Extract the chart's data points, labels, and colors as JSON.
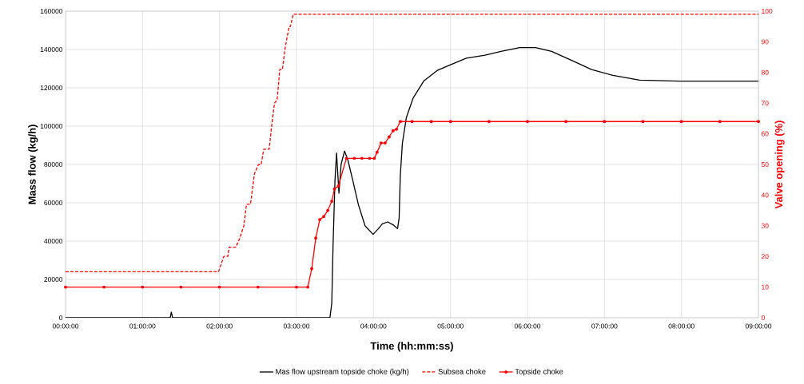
{
  "chart_data": {
    "type": "line",
    "xlabel": "Time (hh:mm:ss)",
    "ylabel": "Mass flow (kg/h)",
    "y2label": "Valve opening (%)",
    "xlim": [
      0,
      9
    ],
    "xticks": [
      {
        "value": 0,
        "label": "00:00:00"
      },
      {
        "value": 1,
        "label": "01:00:00"
      },
      {
        "value": 2,
        "label": "02:00:00"
      },
      {
        "value": 3,
        "label": "03:00:00"
      },
      {
        "value": 4,
        "label": "04:00:00"
      },
      {
        "value": 5,
        "label": "05:00:00"
      },
      {
        "value": 6,
        "label": "06:00:00"
      },
      {
        "value": 7,
        "label": "07:00:00"
      },
      {
        "value": 8,
        "label": "08:00:00"
      },
      {
        "value": 9,
        "label": "09:00:00"
      }
    ],
    "ylim": [
      0,
      160000
    ],
    "yticks": [
      0,
      20000,
      40000,
      60000,
      80000,
      100000,
      120000,
      140000,
      160000
    ],
    "y2lim": [
      0,
      100
    ],
    "y2ticks": [
      0,
      10,
      20,
      30,
      40,
      50,
      60,
      70,
      80,
      90,
      100
    ],
    "grid": true,
    "legend": "bottom",
    "series": [
      {
        "name": "Mas flow upstream topside choke (kg/h)",
        "color": "#000000",
        "line_style": "solid",
        "marker": "none",
        "x": [
          0,
          1.36,
          1.374,
          1.39,
          3.434,
          3.458,
          3.475,
          3.499,
          3.52,
          3.538,
          3.551,
          3.579,
          3.624,
          3.666,
          3.735,
          3.804,
          3.89,
          3.995,
          4.064,
          4.115,
          4.185,
          4.254,
          4.313,
          4.333,
          4.348,
          4.375,
          4.427,
          4.513,
          4.652,
          4.825,
          5.0,
          5.206,
          5.448,
          5.656,
          5.898,
          6.106,
          6.314,
          6.591,
          6.833,
          7.11,
          7.456,
          7.975,
          9
        ],
        "values": [
          0,
          0,
          3000,
          0,
          0,
          7500,
          38000,
          71000,
          86000,
          74000,
          65000,
          80000,
          87000,
          82500,
          71000,
          59000,
          48000,
          43500,
          46500,
          49000,
          50000,
          48500,
          46500,
          52000,
          74000,
          91000,
          104500,
          114500,
          123500,
          129000,
          132000,
          135500,
          137000,
          139000,
          141000,
          141000,
          139000,
          134000,
          129500,
          126500,
          124000,
          123500,
          123500
        ]
      },
      {
        "name": "Subsea choke",
        "color": "#ff0000",
        "axis": "y2",
        "line_style": "dashed",
        "marker": "none",
        "x": [
          0,
          1.987,
          2.056,
          2.108,
          2.125,
          2.212,
          2.264,
          2.316,
          2.35,
          2.402,
          2.454,
          2.506,
          2.541,
          2.575,
          2.645,
          2.679,
          2.714,
          2.748,
          2.783,
          2.817,
          2.852,
          2.904,
          2.921,
          2.956,
          9
        ],
        "values": [
          15,
          15,
          20,
          20,
          23,
          23,
          26,
          30,
          37,
          37,
          47,
          50,
          50,
          55,
          55,
          63,
          70,
          71,
          81,
          81,
          88,
          95,
          95,
          99,
          99
        ]
      },
      {
        "name": "Topside choke",
        "color": "#ff0000",
        "axis": "y2",
        "line_style": "solid",
        "marker": "circle",
        "x": [
          0,
          0.5,
          1,
          1.5,
          2,
          2.5,
          3,
          3.146,
          3.198,
          3.25,
          3.302,
          3.354,
          3.406,
          3.458,
          3.493,
          3.544,
          3.648,
          3.75,
          3.85,
          3.95,
          4.011,
          4.047,
          4.099,
          4.151,
          4.203,
          4.255,
          4.299,
          4.348,
          4.5,
          4.75,
          5,
          5.5,
          6,
          6.5,
          7,
          7.5,
          8,
          8.5,
          9
        ],
        "values": [
          10,
          10,
          10,
          10,
          10,
          10,
          10,
          10,
          16,
          26,
          32,
          33,
          35,
          38,
          42,
          43,
          52,
          52,
          52,
          52,
          52,
          54,
          57,
          57,
          59,
          61,
          61.5,
          64,
          64,
          64,
          64,
          64,
          64,
          64,
          64,
          64,
          64,
          64,
          64
        ]
      }
    ]
  }
}
